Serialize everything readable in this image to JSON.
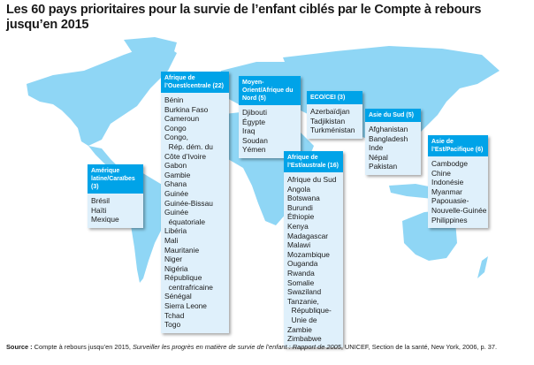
{
  "title": "Les 60 pays prioritaires pour la survie de l’enfant ciblés par le Compte à rebours jusqu’en 2015",
  "colors": {
    "land": "#8fd6f5",
    "header": "#00a3e8",
    "box_bg": "#dff0fb"
  },
  "regions": [
    {
      "id": "amerique",
      "header": "Amérique latine/Caraïbes (3)",
      "countries": [
        "Brésil",
        "Haïti",
        "Mexique"
      ]
    },
    {
      "id": "afrique-ouest",
      "header": "Afrique de l’Ouest/centrale (22)",
      "countries": [
        "Bénin",
        "Burkina Faso",
        "Cameroun",
        "Congo",
        "Congo,",
        "  Rép. dém. du",
        "Côte d’Ivoire",
        "Gabon",
        "Gambie",
        "Ghana",
        "Guinée",
        "Guinée-Bissau",
        "Guinée",
        "  équatoriale",
        "Libéria",
        "Mali",
        "Mauritanie",
        "Niger",
        "Nigéria",
        "République",
        "  centrafricaine",
        "Sénégal",
        "Sierra Leone",
        "Tchad",
        "Togo"
      ]
    },
    {
      "id": "moyen-orient",
      "header": "Moyen-Orient/Afrique du Nord (5)",
      "countries": [
        "Djibouti",
        "Égypte",
        "Iraq",
        "Soudan",
        "Yémen"
      ]
    },
    {
      "id": "eco-cei",
      "header": "ECO/CEI (3)",
      "countries": [
        "Azerbaïdjan",
        "Tadjikistan",
        "Turkménistan"
      ]
    },
    {
      "id": "asie-sud",
      "header": "Asie du Sud (5)",
      "countries": [
        "Afghanistan",
        "Bangladesh",
        "Inde",
        "Népal",
        "Pakistan"
      ]
    },
    {
      "id": "asie-est",
      "header": "Asie de l’Est/Pacifique (6)",
      "countries": [
        "Cambodge",
        "Chine",
        "Indonésie",
        "Myanmar",
        "Papouasie-",
        "Nouvelle-Guinée",
        "Philippines"
      ]
    },
    {
      "id": "afrique-est",
      "header": "Afrique de l’Est/australe (16)",
      "countries": [
        "Afrique du Sud",
        "Angola",
        "Botswana",
        "Burundi",
        "Éthiopie",
        "Kenya",
        "Madagascar",
        "Malawi",
        "Mozambique",
        "Ouganda",
        "Rwanda",
        "Somalie",
        "Swaziland",
        "Tanzanie,",
        "  République-",
        "  Unie de",
        "Zambie",
        "Zimbabwe"
      ]
    }
  ],
  "source": {
    "label": "Source :",
    "text1": "Compte à rebours jusqu’en 2015,",
    "italic": "Surveiller les progrès en matière de survie de l’enfant : Rapport de 2005",
    "text2": ", UNICEF, Section de la santé, New York, 2006, p. 37."
  }
}
